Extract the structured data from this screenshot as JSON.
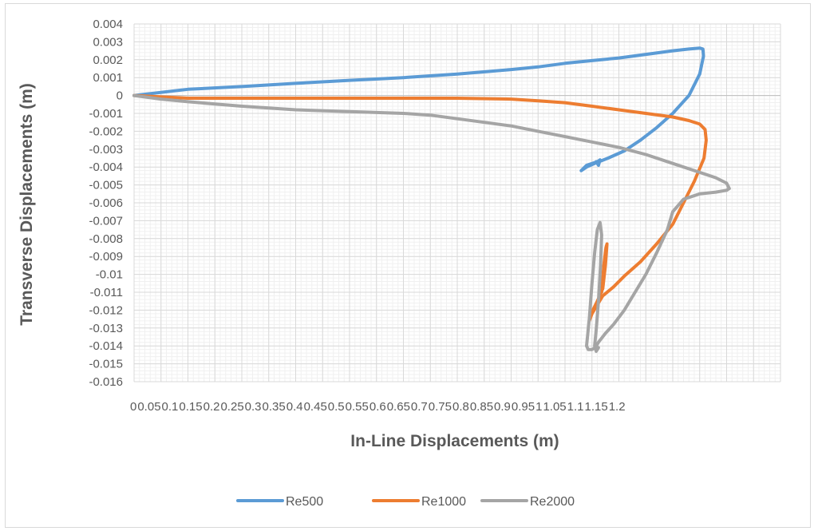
{
  "chart_data": {
    "type": "line",
    "xlabel": "In-Line Displacements (m)",
    "ylabel": "Transverse Displacements (m)",
    "xlim": [
      0,
      1.2
    ],
    "ylim": [
      -0.016,
      0.004
    ],
    "x_ticks": [
      "0",
      "0.05",
      "0.1",
      "0.15",
      "0.2",
      "0.25",
      "0.3",
      "0.35",
      "0.4",
      "0.45",
      "0.5",
      "0.55",
      "0.6",
      "0.65",
      "0.7",
      "0.75",
      "0.8",
      "0.85",
      "0.9",
      "0.95",
      "1",
      "1.05",
      "1.1",
      "1.15",
      "1.2"
    ],
    "y_ticks": [
      "0.004",
      "0.003",
      "0.002",
      "0.001",
      "0",
      "-0.001",
      "-0.002",
      "-0.003",
      "-0.004",
      "-0.005",
      "-0.006",
      "-0.007",
      "-0.008",
      "-0.009",
      "-0.01",
      "-0.011",
      "-0.012",
      "-0.013",
      "-0.014",
      "-0.015",
      "-0.016"
    ],
    "grid": true,
    "legend_position": "bottom",
    "series": [
      {
        "name": "Re500",
        "color": "#5b9bd5",
        "x": [
          0,
          0.1,
          0.2,
          0.3,
          0.4,
          0.5,
          0.6,
          0.7,
          0.75,
          0.8,
          0.85,
          0.9,
          0.95,
          1.0,
          1.03,
          1.05,
          1.056,
          1.057,
          1.05,
          1.03,
          1.0,
          0.97,
          0.94,
          0.91,
          0.88,
          0.855,
          0.84,
          0.83,
          0.84,
          0.86,
          0.865,
          0.862,
          0.858
        ],
        "y": [
          0,
          0.00035,
          0.0005,
          0.00068,
          0.00085,
          0.001,
          0.0012,
          0.00145,
          0.0016,
          0.0018,
          0.00195,
          0.0021,
          0.0023,
          0.0025,
          0.0026,
          0.00265,
          0.0026,
          0.0022,
          0.0012,
          0.0,
          -0.001,
          -0.0018,
          -0.0025,
          -0.0031,
          -0.0035,
          -0.0038,
          -0.004,
          -0.0042,
          -0.0039,
          -0.0037,
          -0.0036,
          -0.0039,
          -0.0037
        ]
      },
      {
        "name": "Re1000",
        "color": "#ed7d31",
        "x": [
          0,
          0.1,
          0.2,
          0.3,
          0.4,
          0.5,
          0.6,
          0.7,
          0.75,
          0.8,
          0.85,
          0.9,
          0.95,
          1.0,
          1.03,
          1.05,
          1.06,
          1.062,
          1.058,
          1.04,
          1.02,
          1.0,
          0.97,
          0.94,
          0.91,
          0.89,
          0.87,
          0.86,
          0.85,
          0.845,
          0.85,
          0.86,
          0.87,
          0.875,
          0.878,
          0.876,
          0.872,
          0.868
        ],
        "y": [
          0,
          -0.00015,
          -0.00015,
          -0.00015,
          -0.00015,
          -0.00015,
          -0.00015,
          -0.0002,
          -0.0003,
          -0.0004,
          -0.0006,
          -0.0008,
          -0.001,
          -0.0012,
          -0.0014,
          -0.0016,
          -0.0019,
          -0.0025,
          -0.0035,
          -0.0048,
          -0.006,
          -0.0072,
          -0.0083,
          -0.0093,
          -0.0101,
          -0.0107,
          -0.0112,
          -0.0117,
          -0.0122,
          -0.0126,
          -0.0121,
          -0.0115,
          -0.0108,
          -0.0095,
          -0.0083,
          -0.0085,
          -0.0095,
          -0.011
        ]
      },
      {
        "name": "Re2000",
        "color": "#a5a5a5",
        "x": [
          0,
          0.05,
          0.1,
          0.2,
          0.3,
          0.4,
          0.5,
          0.55,
          0.6,
          0.65,
          0.7,
          0.75,
          0.8,
          0.85,
          0.9,
          0.95,
          1.0,
          1.05,
          1.08,
          1.1,
          1.105,
          1.1,
          1.08,
          1.05,
          1.02,
          1.0,
          0.99,
          0.97,
          0.95,
          0.93,
          0.91,
          0.89,
          0.875,
          0.862,
          0.856,
          0.85,
          0.843,
          0.84,
          0.845,
          0.85,
          0.855,
          0.86,
          0.865,
          0.868,
          0.866,
          0.862,
          0.858,
          0.855,
          0.858,
          0.862
        ],
        "y": [
          0,
          -0.0002,
          -0.00035,
          -0.0006,
          -0.0008,
          -0.0009,
          -0.001,
          -0.0011,
          -0.0013,
          -0.0015,
          -0.0017,
          -0.002,
          -0.0023,
          -0.0026,
          -0.0029,
          -0.0033,
          -0.0038,
          -0.0043,
          -0.0046,
          -0.0049,
          -0.0052,
          -0.0053,
          -0.0054,
          -0.0055,
          -0.0058,
          -0.0065,
          -0.0075,
          -0.0088,
          -0.01,
          -0.011,
          -0.012,
          -0.0128,
          -0.0133,
          -0.0138,
          -0.0141,
          -0.0142,
          -0.0142,
          -0.014,
          -0.0125,
          -0.0105,
          -0.0088,
          -0.0075,
          -0.0071,
          -0.0078,
          -0.0095,
          -0.0115,
          -0.0131,
          -0.014,
          -0.0143,
          -0.0141
        ]
      }
    ]
  }
}
